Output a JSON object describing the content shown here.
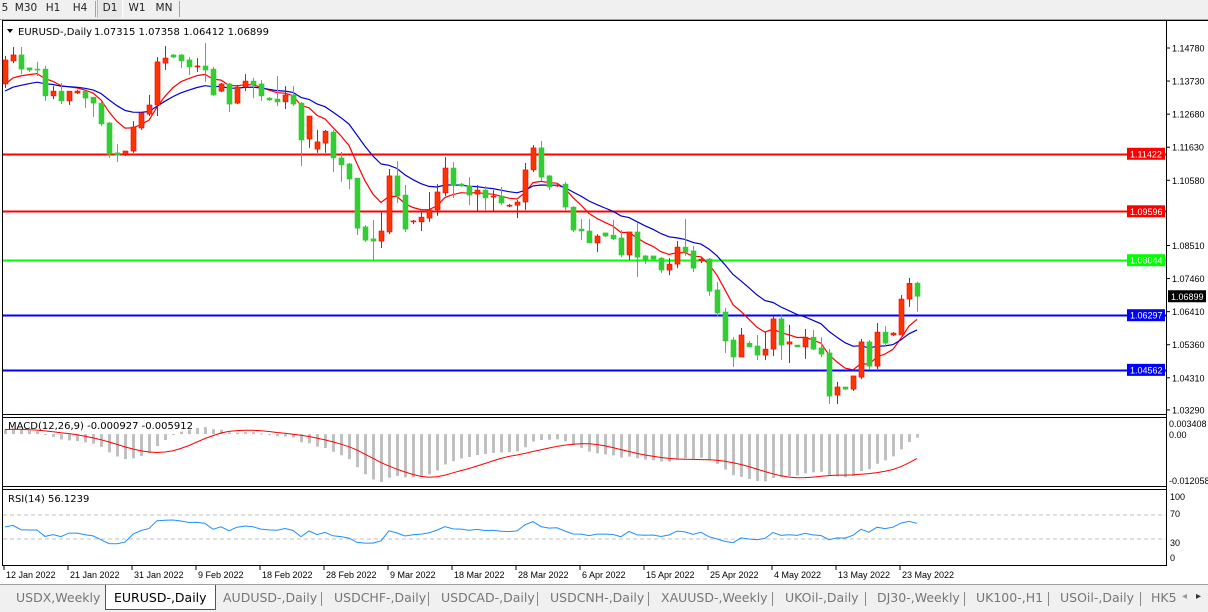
{
  "toolbar": {
    "timeframes": [
      "5",
      "M30",
      "H1",
      "H4",
      "D1",
      "W1",
      "MN"
    ],
    "active": "D1"
  },
  "chart": {
    "symbol_period": "EURUSD-,Daily",
    "ohlc_readout": "1.07315 1.07358 1.06412 1.06899"
  },
  "colors": {
    "bull_candle": "#ff3300",
    "bear_candle": "#32cd32",
    "ma_fast": "#ff0000",
    "ma_slow": "#0000cc",
    "macd_histogram": "#c0c0c0",
    "macd_signal": "#ff0000",
    "rsi_line": "#1e90ff",
    "current_price_bg": "#000000"
  },
  "chart_data": {
    "type": "candlestick",
    "ohlc_order": [
      "open",
      "high",
      "low",
      "close"
    ],
    "ohlc": [
      [
        1.1364,
        1.1453,
        1.1351,
        1.144
      ],
      [
        1.1437,
        1.1481,
        1.143,
        1.1456
      ],
      [
        1.1456,
        1.1481,
        1.1395,
        1.1411
      ],
      [
        1.1415,
        1.1415,
        1.1402,
        1.1408
      ],
      [
        1.1411,
        1.1434,
        1.1389,
        1.1408
      ],
      [
        1.1411,
        1.1421,
        1.131,
        1.1326
      ],
      [
        1.1326,
        1.1357,
        1.1316,
        1.1341
      ],
      [
        1.1341,
        1.1367,
        1.13,
        1.131
      ],
      [
        1.131,
        1.1341,
        1.1297,
        1.1341
      ],
      [
        1.1335,
        1.1345,
        1.1332,
        1.1341
      ],
      [
        1.1341,
        1.1341,
        1.1288,
        1.1319
      ],
      [
        1.1322,
        1.1322,
        1.1259,
        1.1303
      ],
      [
        1.1303,
        1.1307,
        1.123,
        1.1237
      ],
      [
        1.124,
        1.1243,
        1.1129,
        1.1141
      ],
      [
        1.1145,
        1.1173,
        1.1116,
        1.1138
      ],
      [
        1.1141,
        1.1151,
        1.1135,
        1.1151
      ],
      [
        1.1151,
        1.1246,
        1.1145,
        1.1227
      ],
      [
        1.1224,
        1.1272,
        1.1218,
        1.1272
      ],
      [
        1.1268,
        1.1329,
        1.1262,
        1.1297
      ],
      [
        1.1297,
        1.1449,
        1.1262,
        1.1434
      ],
      [
        1.143,
        1.1484,
        1.1408,
        1.1446
      ],
      [
        1.1456,
        1.1459,
        1.1446,
        1.1449
      ],
      [
        1.1456,
        1.1459,
        1.1415,
        1.1437
      ],
      [
        1.144,
        1.1449,
        1.1392,
        1.1418
      ],
      [
        1.1418,
        1.1446,
        1.1402,
        1.1421
      ],
      [
        1.1421,
        1.1494,
        1.137,
        1.1408
      ],
      [
        1.1411,
        1.1418,
        1.1326,
        1.1329
      ],
      [
        1.1341,
        1.1367,
        1.1338,
        1.1364
      ],
      [
        1.1364,
        1.1367,
        1.1275,
        1.13
      ],
      [
        1.1303,
        1.1361,
        1.13,
        1.1354
      ],
      [
        1.1354,
        1.1395,
        1.1341,
        1.1373
      ],
      [
        1.1373,
        1.1383,
        1.1319,
        1.1361
      ],
      [
        1.1364,
        1.1376,
        1.131,
        1.1326
      ],
      [
        1.1319,
        1.1322,
        1.131,
        1.1313
      ],
      [
        1.1316,
        1.1389,
        1.1294,
        1.1307
      ],
      [
        1.1307,
        1.1357,
        1.1284,
        1.1329
      ],
      [
        1.1329,
        1.1357,
        1.1294,
        1.13
      ],
      [
        1.1303,
        1.1307,
        1.1103,
        1.1186
      ],
      [
        1.1189,
        1.1262,
        1.1161,
        1.1262
      ],
      [
        1.1157,
        1.1218,
        1.1145,
        1.118
      ],
      [
        1.1176,
        1.1218,
        1.1145,
        1.1214
      ],
      [
        1.1211,
        1.1218,
        1.1084,
        1.1129
      ],
      [
        1.1129,
        1.1148,
        1.1053,
        1.1107
      ],
      [
        1.111,
        1.1113,
        1.103,
        1.1062
      ],
      [
        1.1065,
        1.1065,
        1.0884,
        1.0906
      ],
      [
        1.091,
        1.0916,
        1.0862,
        1.0868
      ],
      [
        1.0872,
        1.0932,
        1.0805,
        1.0865
      ],
      [
        1.0865,
        1.0957,
        1.0843,
        1.0897
      ],
      [
        1.0894,
        1.1094,
        1.0887,
        1.1072
      ],
      [
        1.1072,
        1.1119,
        1.0986,
        1.1008
      ],
      [
        1.1011,
        1.1043,
        1.0894,
        1.0903
      ],
      [
        1.0926,
        1.0932,
        1.0919,
        1.0929
      ],
      [
        1.0926,
        1.0957,
        1.0897,
        1.0941
      ],
      [
        1.0938,
        1.1021,
        1.0926,
        1.0964
      ],
      [
        1.0964,
        1.1046,
        1.0945,
        1.1021
      ],
      [
        1.1018,
        1.1132,
        1.1008,
        1.1097
      ],
      [
        1.1097,
        1.1116,
        1.1002,
        1.1043
      ],
      [
        1.1046,
        1.1049,
        1.1037,
        1.104
      ],
      [
        1.104,
        1.1068,
        1.0979,
        1.1011
      ],
      [
        1.1014,
        1.1043,
        1.096,
        1.1027
      ],
      [
        1.1027,
        1.104,
        1.096,
        1.1002
      ],
      [
        1.1005,
        1.1027,
        1.096,
        1.1008
      ],
      [
        1.1008,
        1.1037,
        1.0979,
        1.0986
      ],
      [
        1.0976,
        1.0983,
        1.0973,
        1.0979
      ],
      [
        1.0979,
        1.0995,
        1.0938,
        1.0989
      ],
      [
        1.0989,
        1.1113,
        1.0964,
        1.1091
      ],
      [
        1.1091,
        1.117,
        1.1084,
        1.1161
      ],
      [
        1.1161,
        1.1183,
        1.1056,
        1.1068
      ],
      [
        1.1072,
        1.1075,
        1.1027,
        1.1037
      ],
      [
        1.104,
        1.1046,
        1.1037,
        1.1043
      ],
      [
        1.1046,
        1.1053,
        1.096,
        1.0973
      ],
      [
        1.0973,
        1.0976,
        1.0894,
        1.09
      ],
      [
        1.0903,
        1.0935,
        1.0868,
        1.0897
      ],
      [
        1.0897,
        1.0935,
        1.0859,
        1.0859
      ],
      [
        1.0859,
        1.0887,
        1.083,
        1.0881
      ],
      [
        1.0891,
        1.0891,
        1.0878,
        1.0881
      ],
      [
        1.0884,
        1.0932,
        1.0868,
        1.0872
      ],
      [
        1.0875,
        1.09,
        1.0814,
        1.0821
      ],
      [
        1.0821,
        1.0894,
        1.0805,
        1.0894
      ],
      [
        1.0894,
        1.0922,
        1.0751,
        1.0814
      ],
      [
        1.0818,
        1.0821,
        1.0792,
        1.0805
      ],
      [
        1.0818,
        1.0818,
        1.0805,
        1.0808
      ],
      [
        1.0811,
        1.0814,
        1.0764,
        1.0773
      ],
      [
        1.0773,
        1.0811,
        1.0757,
        1.0792
      ],
      [
        1.0792,
        1.0865,
        1.0779,
        1.0846
      ],
      [
        1.0846,
        1.0935,
        1.0818,
        1.083
      ],
      [
        1.0834,
        1.0849,
        1.0767,
        1.0779
      ],
      [
        1.0802,
        1.0811,
        1.0795,
        1.0808
      ],
      [
        1.0808,
        1.0811,
        1.0691,
        1.0706
      ],
      [
        1.071,
        1.0735,
        1.0627,
        1.0637
      ],
      [
        1.064,
        1.0653,
        1.051,
        1.0548
      ],
      [
        1.0551,
        1.056,
        1.0465,
        1.0497
      ],
      [
        1.0497,
        1.0589,
        1.0497,
        1.0567
      ],
      [
        1.0541,
        1.0548,
        1.0529,
        1.0529
      ],
      [
        1.0532,
        1.0567,
        1.0487,
        1.0503
      ],
      [
        1.0503,
        1.0576,
        1.0487,
        1.0522
      ],
      [
        1.0522,
        1.0627,
        1.05,
        1.0618
      ],
      [
        1.0618,
        1.063,
        1.0487,
        1.0535
      ],
      [
        1.0538,
        1.0599,
        1.0478,
        1.0545
      ],
      [
        1.0535,
        1.0535,
        1.0529,
        1.0529
      ],
      [
        1.0529,
        1.0586,
        1.0491,
        1.056
      ],
      [
        1.056,
        1.0583,
        1.0519,
        1.0522
      ],
      [
        1.0526,
        1.056,
        1.0497,
        1.0506
      ],
      [
        1.051,
        1.0522,
        1.0348,
        1.0373
      ],
      [
        1.0376,
        1.0418,
        1.0348,
        1.0402
      ],
      [
        1.0402,
        1.0402,
        1.0392,
        1.0395
      ],
      [
        1.0395,
        1.0437,
        1.0389,
        1.0437
      ],
      [
        1.0433,
        1.0554,
        1.0427,
        1.0545
      ],
      [
        1.0545,
        1.0551,
        1.0456,
        1.0468
      ],
      [
        1.0468,
        1.0605,
        1.0459,
        1.0576
      ],
      [
        1.0576,
        1.0595,
        1.0532,
        1.0541
      ],
      [
        1.0567,
        1.0576,
        1.0564,
        1.0573
      ],
      [
        1.0567,
        1.0694,
        1.0567,
        1.0681
      ],
      [
        1.0681,
        1.0748,
        1.0656,
        1.0731
      ],
      [
        1.07315,
        1.07358,
        1.06412,
        1.06899
      ]
    ],
    "price_axis_ticks": [
      "1.14780",
      "1.13730",
      "1.12680",
      "1.11630",
      "1.10580",
      "1.08510",
      "1.07460",
      "1.06410",
      "1.05360",
      "1.04310",
      "1.03290"
    ],
    "date_ticks": [
      "12 Jan 2022",
      "21 Jan 2022",
      "31 Jan 2022",
      "9 Feb 2022",
      "18 Feb 2022",
      "28 Feb 2022",
      "9 Mar 2022",
      "18 Mar 2022",
      "28 Mar 2022",
      "6 Apr 2022",
      "15 Apr 2022",
      "25 Apr 2022",
      "4 May 2022",
      "13 May 2022",
      "23 May 2022"
    ],
    "horizontal_lines": [
      {
        "price": "1.11422",
        "color": "#ff0000"
      },
      {
        "price": "1.09596",
        "color": "#ff0000"
      },
      {
        "price": "1.08044",
        "color": "#00ff00"
      },
      {
        "price": "1.06297",
        "color": "#0000ff"
      },
      {
        "price": "1.04562",
        "color": "#0000ff"
      }
    ],
    "current_price": "1.06899",
    "macd": {
      "label": "MACD(12,26,9) -0.000927 -0.005912",
      "ticks": [
        "0.003408",
        "0.00",
        "-0.012058"
      ],
      "range": [
        -0.012058,
        0.003408
      ]
    },
    "rsi": {
      "label": "RSI(14) 56.1239",
      "ticks": [
        "100",
        "70",
        "30",
        "0"
      ],
      "levels": [
        70,
        30
      ],
      "range": [
        0,
        100
      ]
    }
  },
  "tabs": [
    {
      "label": "USDX,Weekly"
    },
    {
      "label": "EURUSD-,Daily",
      "active": true
    },
    {
      "label": "AUDUSD-,Daily"
    },
    {
      "label": "USDCHF-,Daily"
    },
    {
      "label": "USDCAD-,Daily"
    },
    {
      "label": "USDCNH-,Daily"
    },
    {
      "label": "XAUUSD-,Weekly"
    },
    {
      "label": "UKOil-,Daily"
    },
    {
      "label": "DJ30-,Weekly"
    },
    {
      "label": "UK100-,H1"
    },
    {
      "label": "USOil-,Daily"
    },
    {
      "label": "HK5"
    }
  ],
  "tab_scroll": {
    "left": "◂",
    "right": "▸"
  }
}
